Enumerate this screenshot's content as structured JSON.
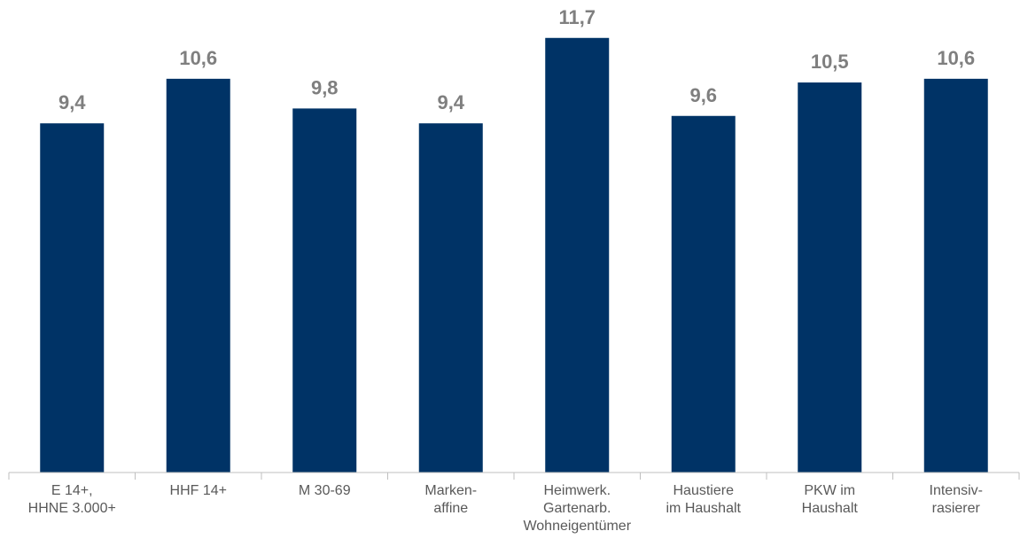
{
  "chart_data": {
    "type": "bar",
    "categories": [
      [
        "E 14+,",
        "HHNE 3.000+"
      ],
      [
        "HHF 14+"
      ],
      [
        "M 30-69"
      ],
      [
        "Marken-",
        "affine"
      ],
      [
        "Heimwerk.",
        "Gartenarb.",
        "Wohneigentümer"
      ],
      [
        "Haustiere",
        "im Haushalt"
      ],
      [
        "PKW im",
        "Haushalt"
      ],
      [
        "Intensiv-",
        "rasierer"
      ]
    ],
    "values": [
      9.4,
      10.6,
      9.8,
      9.4,
      11.7,
      9.6,
      10.5,
      10.6
    ],
    "value_labels": [
      "9,4",
      "10,6",
      "9,8",
      "9,4",
      "11,7",
      "9,6",
      "10,5",
      "10,6"
    ],
    "ylim": [
      0,
      13
    ],
    "grid": false,
    "bar_color": "#003366",
    "label_color": "#7f7f7f",
    "axis_color": "#bfbfbf"
  }
}
